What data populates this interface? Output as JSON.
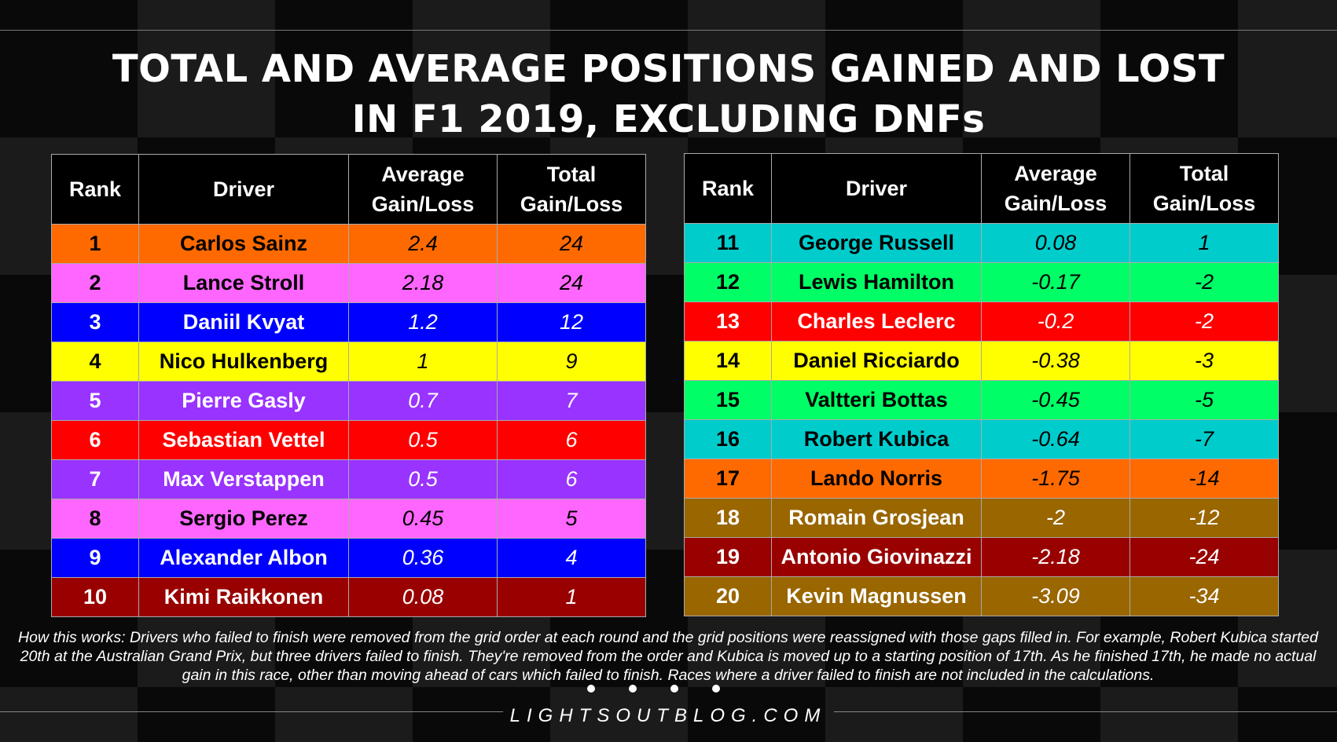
{
  "title_line1": "TOTAL AND AVERAGE POSITIONS GAINED AND LOST",
  "title_line2": "IN F1 2019, EXCLUDING DNFs",
  "headers": {
    "rank": "Rank",
    "driver": "Driver",
    "avg_line1": "Average",
    "avg_line2": "Gain/Loss",
    "tot_line1": "Total",
    "tot_line2": "Gain/Loss"
  },
  "left_rows": [
    {
      "rank": "1",
      "driver": "Carlos Sainz",
      "avg": "2.4",
      "total": "24",
      "bg": "#ff6a00",
      "fg": "#000000"
    },
    {
      "rank": "2",
      "driver": "Lance Stroll",
      "avg": "2.18",
      "total": "24",
      "bg": "#ff66ff",
      "fg": "#000000"
    },
    {
      "rank": "3",
      "driver": "Daniil Kvyat",
      "avg": "1.2",
      "total": "12",
      "bg": "#0000ff",
      "fg": "#ffffff"
    },
    {
      "rank": "4",
      "driver": "Nico Hulkenberg",
      "avg": "1",
      "total": "9",
      "bg": "#ffff00",
      "fg": "#000000"
    },
    {
      "rank": "5",
      "driver": "Pierre Gasly",
      "avg": "0.7",
      "total": "7",
      "bg": "#9933ff",
      "fg": "#ffffff"
    },
    {
      "rank": "6",
      "driver": "Sebastian Vettel",
      "avg": "0.5",
      "total": "6",
      "bg": "#ff0000",
      "fg": "#ffffff"
    },
    {
      "rank": "7",
      "driver": "Max Verstappen",
      "avg": "0.5",
      "total": "6",
      "bg": "#9933ff",
      "fg": "#ffffff"
    },
    {
      "rank": "8",
      "driver": "Sergio Perez",
      "avg": "0.45",
      "total": "5",
      "bg": "#ff66ff",
      "fg": "#000000"
    },
    {
      "rank": "9",
      "driver": "Alexander Albon",
      "avg": "0.36",
      "total": "4",
      "bg": "#0000ff",
      "fg": "#ffffff"
    },
    {
      "rank": "10",
      "driver": "Kimi Raikkonen",
      "avg": "0.08",
      "total": "1",
      "bg": "#990000",
      "fg": "#ffffff"
    }
  ],
  "right_rows": [
    {
      "rank": "11",
      "driver": "George Russell",
      "avg": "0.08",
      "total": "1",
      "bg": "#00cccc",
      "fg": "#000000"
    },
    {
      "rank": "12",
      "driver": "Lewis Hamilton",
      "avg": "-0.17",
      "total": "-2",
      "bg": "#00ff66",
      "fg": "#000000"
    },
    {
      "rank": "13",
      "driver": "Charles Leclerc",
      "avg": "-0.2",
      "total": "-2",
      "bg": "#ff0000",
      "fg": "#ffffff"
    },
    {
      "rank": "14",
      "driver": "Daniel Ricciardo",
      "avg": "-0.38",
      "total": "-3",
      "bg": "#ffff00",
      "fg": "#000000"
    },
    {
      "rank": "15",
      "driver": "Valtteri Bottas",
      "avg": "-0.45",
      "total": "-5",
      "bg": "#00ff66",
      "fg": "#000000"
    },
    {
      "rank": "16",
      "driver": "Robert Kubica",
      "avg": "-0.64",
      "total": "-7",
      "bg": "#00cccc",
      "fg": "#000000"
    },
    {
      "rank": "17",
      "driver": "Lando Norris",
      "avg": "-1.75",
      "total": "-14",
      "bg": "#ff6a00",
      "fg": "#000000"
    },
    {
      "rank": "18",
      "driver": "Romain Grosjean",
      "avg": "-2",
      "total": "-12",
      "bg": "#996600",
      "fg": "#ffffff"
    },
    {
      "rank": "19",
      "driver": "Antonio Giovinazzi",
      "avg": "-2.18",
      "total": "-24",
      "bg": "#990000",
      "fg": "#ffffff"
    },
    {
      "rank": "20",
      "driver": "Kevin Magnussen",
      "avg": "-3.09",
      "total": "-34",
      "bg": "#996600",
      "fg": "#ffffff"
    }
  ],
  "note": "How this works: Drivers who failed to finish were removed from the grid order at each round and the grid positions were reassigned with those gaps filled in. For example, Robert Kubica started 20th at the Australian Grand Prix, but three drivers failed to finish. They're removed from the order and Kubica is moved up to a starting position of 17th. As he finished 17th, he made no actual gain in this race, other than moving ahead of cars which failed to finish. Races where a driver failed to finish are not included in the calculations.",
  "brand": "LIGHTSOUTBLOG.COM"
}
